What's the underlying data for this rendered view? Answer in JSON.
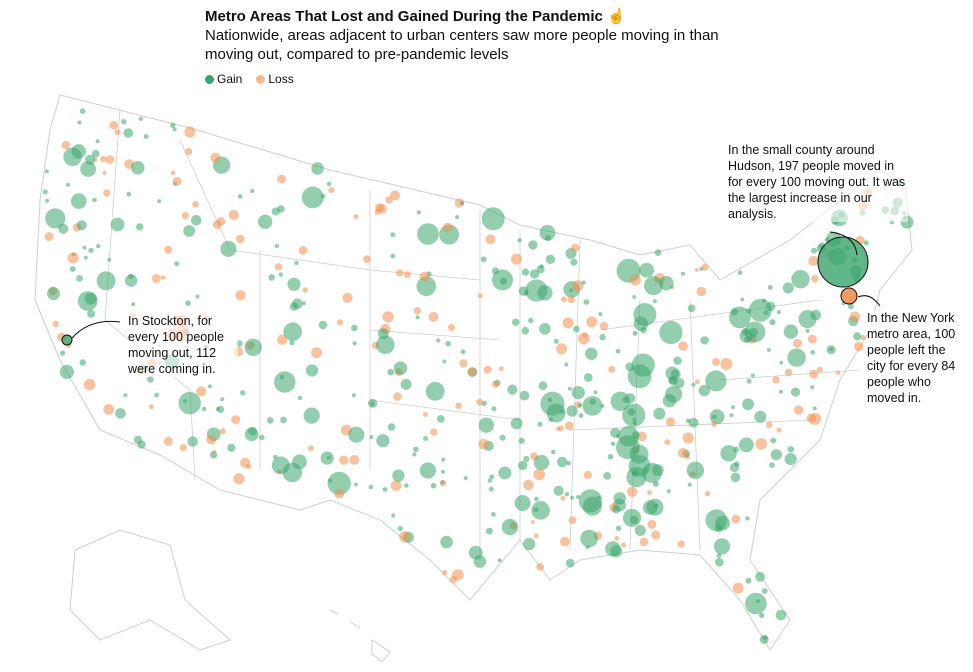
{
  "header": {
    "title": "Metro Areas That Lost and Gained During the Pandemic",
    "title_icon": "pointer-hand-icon",
    "subtitle": "Nationwide, areas adjacent to urban centers saw more people moving in than moving out, compared to pre-pandemic levels"
  },
  "legend": [
    {
      "label": "Gain",
      "color": "#3aa56b"
    },
    {
      "label": "Loss",
      "color": "#f5a36b"
    }
  ],
  "annotations": {
    "hudson": "In the small county around Hudson, 197 people moved in for every 100 moving out. It was the largest increase in our analysis.",
    "new_york": "In the New York metro area, 100 people left the city for every 84 people who moved in.",
    "stockton": "In Stockton, for every 100 people moving out, 112 were coming in."
  },
  "colors": {
    "gain": "#3aa56b",
    "loss": "#f28f4f",
    "border": "#cfcfcf"
  }
}
